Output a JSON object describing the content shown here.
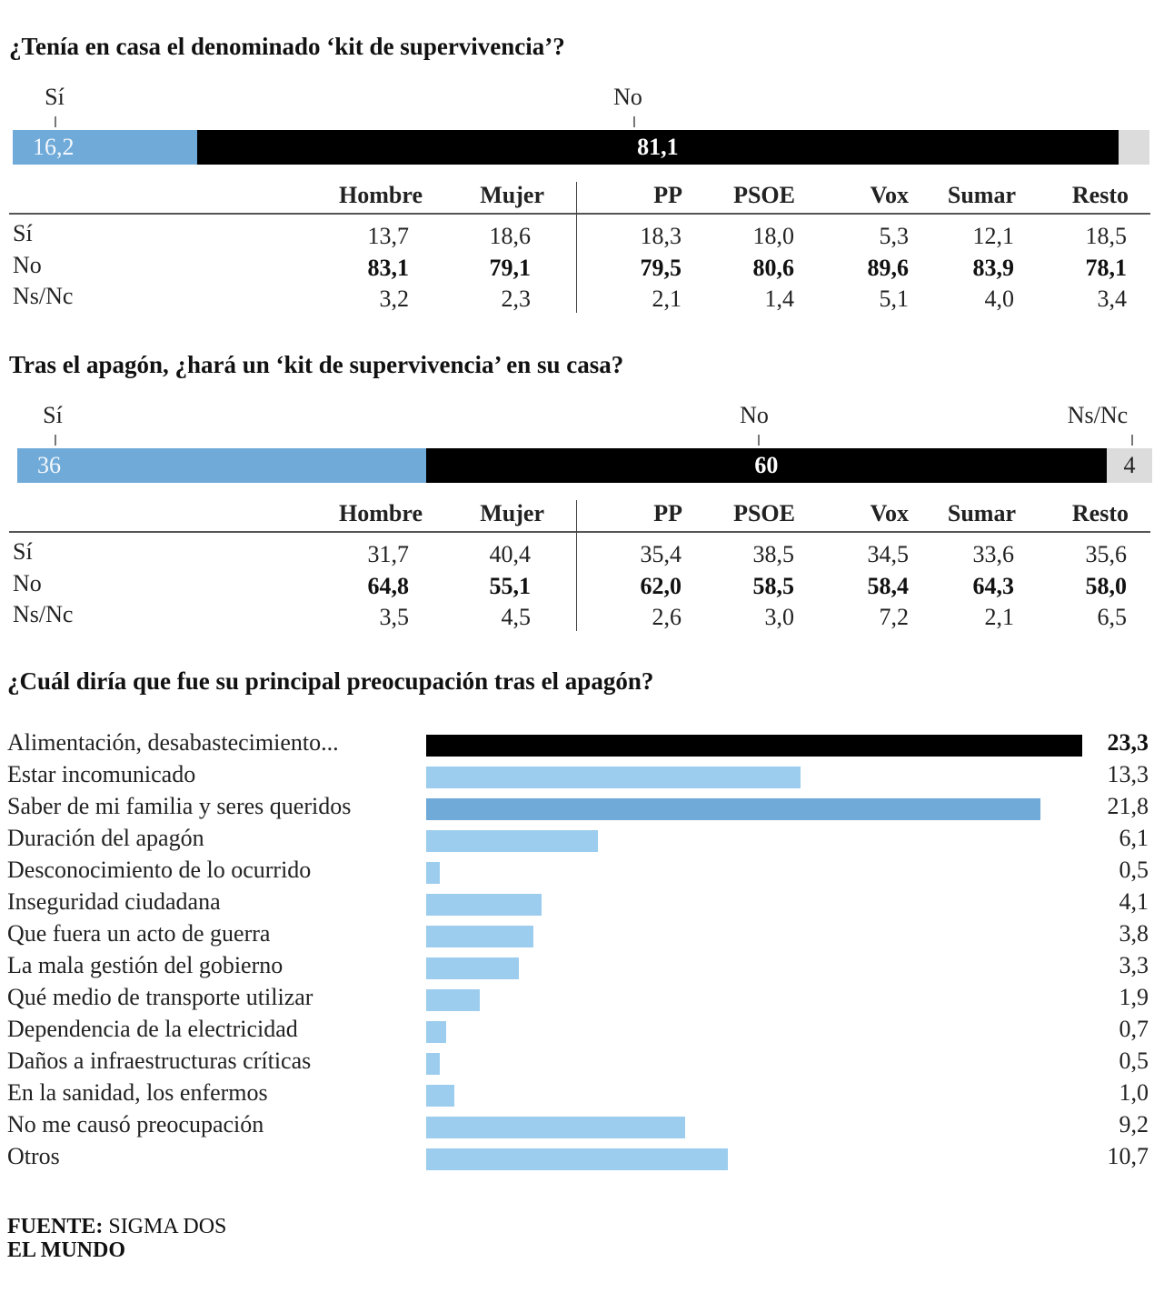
{
  "colors": {
    "si": "#6faad9",
    "no": "#000000",
    "nsnc": "#dcdcdc",
    "bar_light": "#9ccdee",
    "bar_mid": "#6faad9",
    "bar_top": "#000000"
  },
  "chart_data": [
    {
      "type": "bar",
      "stacked": true,
      "title": "¿Tenía en casa el denominado ‘kit de supervivencia’?",
      "categories": [
        "Sí",
        "No",
        "Ns/Nc"
      ],
      "values": [
        16.2,
        81.1,
        2.7
      ],
      "labels": {
        "si": "Sí",
        "no": "No",
        "nsnc": ""
      },
      "value_labels": {
        "si": "16,2",
        "no": "81,1",
        "nsnc": ""
      },
      "table": {
        "columns": [
          "Hombre",
          "Mujer",
          "PP",
          "PSOE",
          "Vox",
          "Sumar",
          "Resto"
        ],
        "rows": [
          {
            "label": "Sí",
            "values": [
              "13,7",
              "18,6",
              "18,3",
              "18,0",
              "5,3",
              "12,1",
              "18,5"
            ]
          },
          {
            "label": "No",
            "values": [
              "83,1",
              "79,1",
              "79,5",
              "80,6",
              "89,6",
              "83,9",
              "78,1"
            ]
          },
          {
            "label": "Ns/Nc",
            "values": [
              "3,2",
              "2,3",
              "2,1",
              "1,4",
              "5,1",
              "4,0",
              "3,4"
            ]
          }
        ]
      }
    },
    {
      "type": "bar",
      "stacked": true,
      "title": "Tras el apagón, ¿hará un ‘kit de supervivencia’ en su casa?",
      "categories": [
        "Sí",
        "No",
        "Ns/Nc"
      ],
      "values": [
        36,
        60,
        4
      ],
      "labels": {
        "si": "Sí",
        "no": "No",
        "nsnc": "Ns/Nc"
      },
      "value_labels": {
        "si": "36",
        "no": "60",
        "nsnc": "4"
      },
      "table": {
        "columns": [
          "Hombre",
          "Mujer",
          "PP",
          "PSOE",
          "Vox",
          "Sumar",
          "Resto"
        ],
        "rows": [
          {
            "label": "Sí",
            "values": [
              "31,7",
              "40,4",
              "35,4",
              "38,5",
              "34,5",
              "33,6",
              "35,6"
            ]
          },
          {
            "label": "No",
            "values": [
              "64,8",
              "55,1",
              "62,0",
              "58,5",
              "58,4",
              "64,3",
              "58,0"
            ]
          },
          {
            "label": "Ns/Nc",
            "values": [
              "3,5",
              "4,5",
              "2,6",
              "3,0",
              "7,2",
              "2,1",
              "6,5"
            ]
          }
        ]
      }
    },
    {
      "type": "bar",
      "orientation": "horizontal",
      "title": "¿Cuál diría que fue su principal preocupación tras el apagón?",
      "xlim": [
        0,
        23.3
      ],
      "categories": [
        "Alimentación, desabastecimiento...",
        "Estar incomunicado",
        "Saber de mi familia y seres queridos",
        "Duración del apagón",
        "Desconocimiento de lo ocurrido",
        "Inseguridad ciudadana",
        "Que fuera un acto de guerra",
        "La mala gestión del gobierno",
        "Qué medio de transporte utilizar",
        "Dependencia de la electricidad",
        "Daños a infraestructuras críticas",
        "En la sanidad, los enfermos",
        "No me causó preocupación",
        "Otros"
      ],
      "values": [
        23.3,
        13.3,
        21.8,
        6.1,
        0.5,
        4.1,
        3.8,
        3.3,
        1.9,
        0.7,
        0.5,
        1.0,
        9.2,
        10.7
      ],
      "value_labels": [
        "23,3",
        "13,3",
        "21,8",
        "6,1",
        "0,5",
        "4,1",
        "3,8",
        "3,3",
        "1,9",
        "0,7",
        "0,5",
        "1,0",
        "9,2",
        "10,7"
      ]
    }
  ],
  "footer": {
    "source_label": "FUENTE:",
    "source": " SIGMA DOS",
    "publisher": "EL MUNDO"
  }
}
